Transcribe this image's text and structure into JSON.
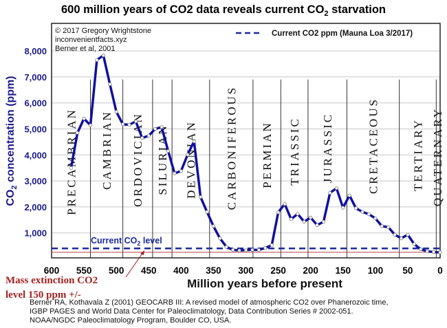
{
  "chart_data": {
    "type": "line",
    "title": {
      "pre": "600 million years of CO2 data reveals current CO",
      "sub": "2",
      "post": " starvation"
    },
    "xlabel": "Million years before present",
    "ylabel": {
      "pre": "CO",
      "sub": "2",
      "post": " concentration (ppm)"
    },
    "xlim": [
      600,
      0
    ],
    "ylim": [
      0,
      9000
    ],
    "x_reversed": true,
    "grid": true,
    "x_ticks": [
      600,
      550,
      500,
      450,
      400,
      350,
      300,
      250,
      200,
      150,
      100,
      50,
      0
    ],
    "y_ticks": [
      1000,
      2000,
      3000,
      4000,
      5000,
      6000,
      7000,
      8000
    ],
    "y_tick_labels": [
      "1,000",
      "2,000",
      "3,000",
      "4,000",
      "5,000",
      "6,000",
      "7,000",
      "8,000"
    ],
    "series": [
      {
        "color": "#1010a0",
        "x": [
          570,
          560,
          550,
          540,
          530,
          520,
          510,
          500,
          490,
          480,
          470,
          460,
          450,
          440,
          430,
          420,
          410,
          400,
          390,
          380,
          370,
          360,
          350,
          340,
          330,
          320,
          310,
          300,
          290,
          280,
          270,
          260,
          250,
          240,
          230,
          220,
          210,
          200,
          190,
          180,
          170,
          160,
          150,
          140,
          130,
          120,
          110,
          100,
          90,
          80,
          70,
          60,
          50,
          40,
          30,
          20,
          10,
          0
        ],
        "y": [
          3500,
          4850,
          5400,
          5140,
          7650,
          7830,
          6720,
          5660,
          5180,
          5160,
          5290,
          4650,
          4740,
          5000,
          5070,
          4150,
          3290,
          3380,
          4010,
          4520,
          2380,
          1810,
          1260,
          790,
          460,
          350,
          325,
          335,
          350,
          345,
          420,
          530,
          1790,
          2110,
          1530,
          1730,
          1430,
          1590,
          1300,
          1430,
          2540,
          2720,
          1970,
          2440,
          1950,
          1810,
          1720,
          1560,
          1260,
          1220,
          930,
          790,
          930,
          570,
          370,
          290,
          265,
          250
        ]
      }
    ],
    "periods": [
      {
        "name": "PRECAMBRIAN",
        "start": 600,
        "end": 540
      },
      {
        "name": "CAMBRIAN",
        "start": 540,
        "end": 490
      },
      {
        "name": "ORDOVICIAN",
        "start": 490,
        "end": 444
      },
      {
        "name": "SILURIAN",
        "start": 444,
        "end": 414
      },
      {
        "name": "DEVONIAN",
        "start": 414,
        "end": 356
      },
      {
        "name": "CARBONIFEROUS",
        "start": 356,
        "end": 289
      },
      {
        "name": "PERMIAN",
        "start": 289,
        "end": 246
      },
      {
        "name": "TRIASSIC",
        "start": 246,
        "end": 204
      },
      {
        "name": "JURASSIC",
        "start": 204,
        "end": 144
      },
      {
        "name": "CRETACEOUS",
        "start": 144,
        "end": 63
      },
      {
        "name": "TERTIARY",
        "start": 63,
        "end": 6
      },
      {
        "name": "QUATERNARY",
        "start": 6,
        "end": 0
      }
    ],
    "reference_lines": [
      {
        "label": {
          "pre": "Current CO",
          "sub": "2",
          "post": " level"
        },
        "value": 405,
        "style": "dashed",
        "color": "#1a2a9c"
      },
      {
        "value": 150,
        "style": "solid",
        "color": "#b04040"
      }
    ],
    "legend": {
      "position": "top-right",
      "label": "Current CO2 ppm (Mauna Loa 3/2017)"
    },
    "credits": [
      "© 2017 Gregory Wrightstone",
      "inconvenientfacts.xyz",
      "Berner et al, 2001"
    ],
    "annotation": {
      "lines": [
        "Mass extinction CO2",
        "level 150 ppm +/-"
      ],
      "color": "#a32020"
    },
    "citation": [
      "Berner RA, Kothavala Z (2001) GEOCARB III: A revised model of atmospheric CO2 over Phanerozoic time,",
      "IGBP PAGES and World Data Center for Paleoclimatology, Data Contribution Series # 2002-051.",
      "NOAA/NGDC Paleoclimatology Program, Boulder CO, USA."
    ]
  }
}
